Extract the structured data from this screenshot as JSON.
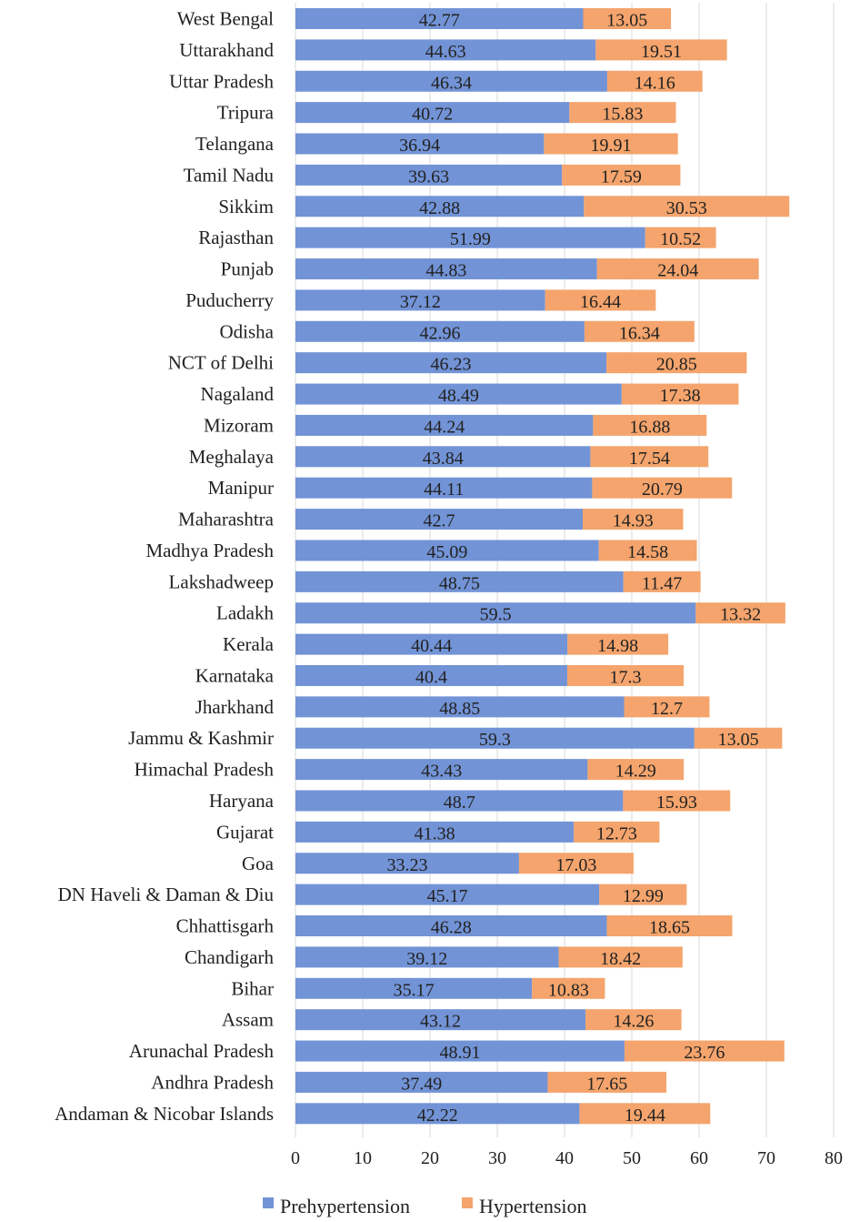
{
  "chart_data": {
    "type": "bar",
    "orientation": "horizontal",
    "stacked": true,
    "title": "",
    "xlabel": "",
    "ylabel": "",
    "xlim": [
      0,
      80
    ],
    "xticks": [
      0,
      10,
      20,
      30,
      40,
      50,
      60,
      70,
      80
    ],
    "grid": true,
    "legend_position": "bottom",
    "categories": [
      "West Bengal",
      "Uttarakhand",
      "Uttar Pradesh",
      "Tripura",
      "Telangana",
      "Tamil Nadu",
      "Sikkim",
      "Rajasthan",
      "Punjab",
      "Puducherry",
      "Odisha",
      "NCT of Delhi",
      "Nagaland",
      "Mizoram",
      "Meghalaya",
      "Manipur",
      "Maharashtra",
      "Madhya Pradesh",
      "Lakshadweep",
      "Ladakh",
      "Kerala",
      "Karnataka",
      "Jharkhand",
      "Jammu & Kashmir",
      "Himachal Pradesh",
      "Haryana",
      "Gujarat",
      "Goa",
      "DN Haveli & Daman & Diu",
      "Chhattisgarh",
      "Chandigarh",
      "Bihar",
      "Assam",
      "Arunachal Pradesh",
      "Andhra Pradesh",
      "Andaman & Nicobar Islands"
    ],
    "series": [
      {
        "name": "Prehypertension",
        "color": "#7293d6",
        "values": [
          42.77,
          44.63,
          46.34,
          40.72,
          36.94,
          39.63,
          42.88,
          51.99,
          44.83,
          37.12,
          42.96,
          46.23,
          48.49,
          44.24,
          43.84,
          44.11,
          42.7,
          45.09,
          48.75,
          59.5,
          40.44,
          40.4,
          48.85,
          59.3,
          43.43,
          48.7,
          41.38,
          33.23,
          45.17,
          46.28,
          39.12,
          35.17,
          43.12,
          48.91,
          37.49,
          42.22
        ],
        "labels": [
          "42.77",
          "44.63",
          "46.34",
          "40.72",
          "36.94",
          "39.63",
          "42.88",
          "51.99",
          "44.83",
          "37.12",
          "42.96",
          "46.23",
          "48.49",
          "44.24",
          "43.84",
          "44.11",
          "42.7",
          "45.09",
          "48.75",
          "59.5",
          "40.44",
          "40.4",
          "48.85",
          "59.3",
          "43.43",
          "48.7",
          "41.38",
          "33.23",
          "45.17",
          "46.28",
          "39.12",
          "35.17",
          "43.12",
          "48.91",
          "37.49",
          "42.22"
        ]
      },
      {
        "name": "Hypertension",
        "color": "#f4a46c",
        "values": [
          13.05,
          19.51,
          14.16,
          15.83,
          19.91,
          17.59,
          30.53,
          10.52,
          24.04,
          16.44,
          16.34,
          20.85,
          17.38,
          16.88,
          17.54,
          20.79,
          14.93,
          14.58,
          11.47,
          13.32,
          14.98,
          17.3,
          12.7,
          13.05,
          14.29,
          15.93,
          12.73,
          17.03,
          12.99,
          18.65,
          18.42,
          10.83,
          14.26,
          23.76,
          17.65,
          19.44
        ],
        "labels": [
          "13.05",
          "19.51",
          "14.16",
          "15.83",
          "19.91",
          "17.59",
          "30.53",
          "10.52",
          "24.04",
          "16.44",
          "16.34",
          "20.85",
          "17.38",
          "16.88",
          "17.54",
          "20.79",
          "14.93",
          "14.58",
          "11.47",
          "13.32",
          "14.98",
          "17.3",
          "12.7",
          "13.05",
          "14.29",
          "15.93",
          "12.73",
          "17.03",
          "12.99",
          "18.65",
          "18.42",
          "10.83",
          "14.26",
          "23.76",
          "17.65",
          "19.44"
        ]
      }
    ]
  }
}
